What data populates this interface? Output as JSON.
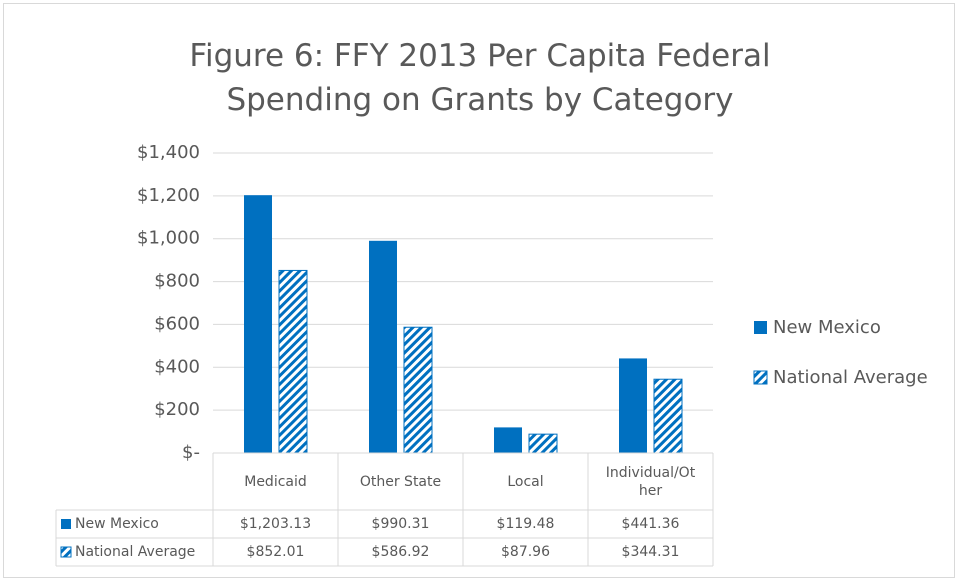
{
  "chart_data": {
    "type": "bar",
    "title": "Figure 6: FFY 2013 Per Capita Federal Spending on Grants by Category",
    "categories": [
      "Medicaid",
      "Other State",
      "Local",
      "Individual/Other"
    ],
    "series": [
      {
        "name": "New Mexico",
        "color": "#0070c0",
        "pattern": "solid",
        "values": [
          1203.13,
          990.31,
          119.48,
          441.36
        ],
        "value_labels": [
          "$1,203.13",
          "$990.31",
          "$119.48",
          "$441.36"
        ]
      },
      {
        "name": "National Average",
        "color": "#0070c0",
        "pattern": "hatch",
        "values": [
          852.01,
          586.92,
          87.96,
          344.31
        ],
        "value_labels": [
          "$852.01",
          "$586.92",
          "$87.96",
          "$344.31"
        ]
      }
    ],
    "ylim": [
      0,
      1400
    ],
    "yticks": [
      {
        "value": 0,
        "label": "$-"
      },
      {
        "value": 200,
        "label": "$200"
      },
      {
        "value": 400,
        "label": "$400"
      },
      {
        "value": 600,
        "label": "$600"
      },
      {
        "value": 800,
        "label": "$800"
      },
      {
        "value": 1000,
        "label": "$1,000"
      },
      {
        "value": 1200,
        "label": "$1,200"
      },
      {
        "value": 1400,
        "label": "$1,400"
      }
    ],
    "grid": true,
    "legend": "right",
    "data_table": true
  }
}
